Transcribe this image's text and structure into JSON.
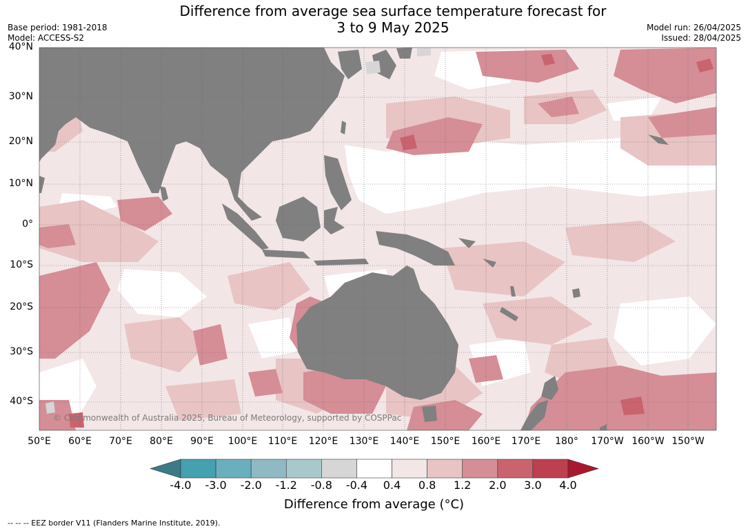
{
  "title": {
    "line1": "Difference from average sea surface temperature forecast for",
    "line2": "3 to 9 May 2025"
  },
  "meta_left": {
    "base_period": "Base period: 1981-2018",
    "model": "Model: ACCESS-S2"
  },
  "meta_right": {
    "model_run": "Model run: 26/04/2025",
    "issued": "Issued: 28/04/2025"
  },
  "lat_labels": [
    "40°N",
    "30°N",
    "20°N",
    "10°N",
    "0°",
    "10°S",
    "20°S",
    "30°S",
    "40°S"
  ],
  "lon_labels": [
    "50°E",
    "60°E",
    "70°E",
    "80°E",
    "90°E",
    "100°E",
    "110°E",
    "120°E",
    "130°E",
    "140°E",
    "150°E",
    "160°E",
    "170°E",
    "180°",
    "170°W",
    "160°W",
    "150°W"
  ],
  "copyright": "© Commonwealth of Australia 2025, Bureau of Meteorology, supported by COSPPac",
  "colorbar": {
    "labels": [
      "-4.0",
      "-3.0",
      "-2.0",
      "-1.2",
      "-0.8",
      "-0.4",
      "0.4",
      "0.8",
      "1.2",
      "2.0",
      "3.0",
      "4.0"
    ],
    "colors": [
      "#3b7b86",
      "#45a0b0",
      "#6aafbd",
      "#8fbac4",
      "#a9c8cc",
      "#d6d6d6",
      "#ffffff",
      "#f3e6e6",
      "#e8c4c4",
      "#d58d96",
      "#c9636e",
      "#bd404e",
      "#a8182e"
    ],
    "title": "Difference from average (",
    "title_unit": "°C)"
  },
  "footer": "--  --  -- EEZ border V11 (Flanders Marine Institute, 2019).",
  "map_colors": {
    "land": "#808080",
    "ocean_base": "#f3e6e6",
    "grid": "#666666"
  }
}
